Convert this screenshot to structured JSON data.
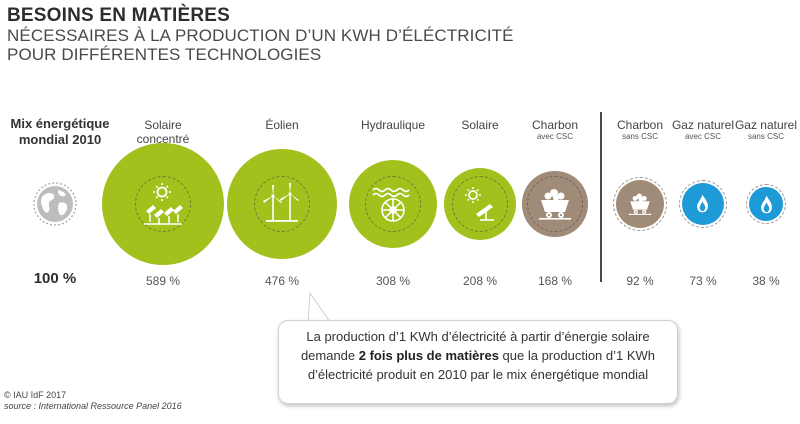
{
  "title": {
    "main": "BESOINS EN MATIÈRES",
    "sub_line1": "NÉCESSAIRES À LA PRODUCTION D’UN KWH D’ÉLÉCTRICITÉ",
    "sub_line2": "POUR DIFFÉRENTES TECHNOLOGIES"
  },
  "reference": {
    "label_line1": "Mix énergétique",
    "label_line2": "mondial 2010",
    "value_label": "100 %",
    "icon": "globe-icon"
  },
  "chart_data": {
    "type": "bubble",
    "unit": "%",
    "reference_value": 100,
    "categories": [
      {
        "name": "Solaire concentré",
        "sub": "",
        "value": 589,
        "label": "589 %",
        "color": "#a2c11c",
        "icon": "solar-concentrator-icon"
      },
      {
        "name": "Éolien",
        "sub": "",
        "value": 476,
        "label": "476 %",
        "color": "#a2c11c",
        "icon": "wind-turbine-icon"
      },
      {
        "name": "Hydraulique",
        "sub": "",
        "value": 308,
        "label": "308 %",
        "color": "#a2c11c",
        "icon": "water-wheel-icon"
      },
      {
        "name": "Solaire",
        "sub": "",
        "value": 208,
        "label": "208 %",
        "color": "#a2c11c",
        "icon": "solar-panel-icon"
      },
      {
        "name": "Charbon",
        "sub": "avec CSC",
        "value": 168,
        "label": "168 %",
        "color": "#a08b78",
        "icon": "coal-cart-icon"
      },
      {
        "name": "Charbon",
        "sub": "sans CSC",
        "value": 92,
        "label": "92 %",
        "color": "#a08b78",
        "icon": "coal-cart-icon"
      },
      {
        "name": "Gaz naturel",
        "sub": "avec CSC",
        "value": 73,
        "label": "73 %",
        "color": "#1e9ad6",
        "icon": "gas-flame-icon"
      },
      {
        "name": "Gaz naturel",
        "sub": "sans CSC",
        "value": 38,
        "label": "38 %",
        "color": "#1e9ad6",
        "icon": "gas-flame-icon"
      }
    ]
  },
  "callout": {
    "text_before": "La production d’1 KWh d’électricité à partir d’énergie solaire demande ",
    "text_bold": "2 fois plus de matières",
    "text_after": " que la production d’1 KWh d’électricité produit en 2010 par le mix énergétique mondial"
  },
  "credit": {
    "line1": "© IAU îdF 2017",
    "line2": "source : International Ressource Panel 2016"
  }
}
